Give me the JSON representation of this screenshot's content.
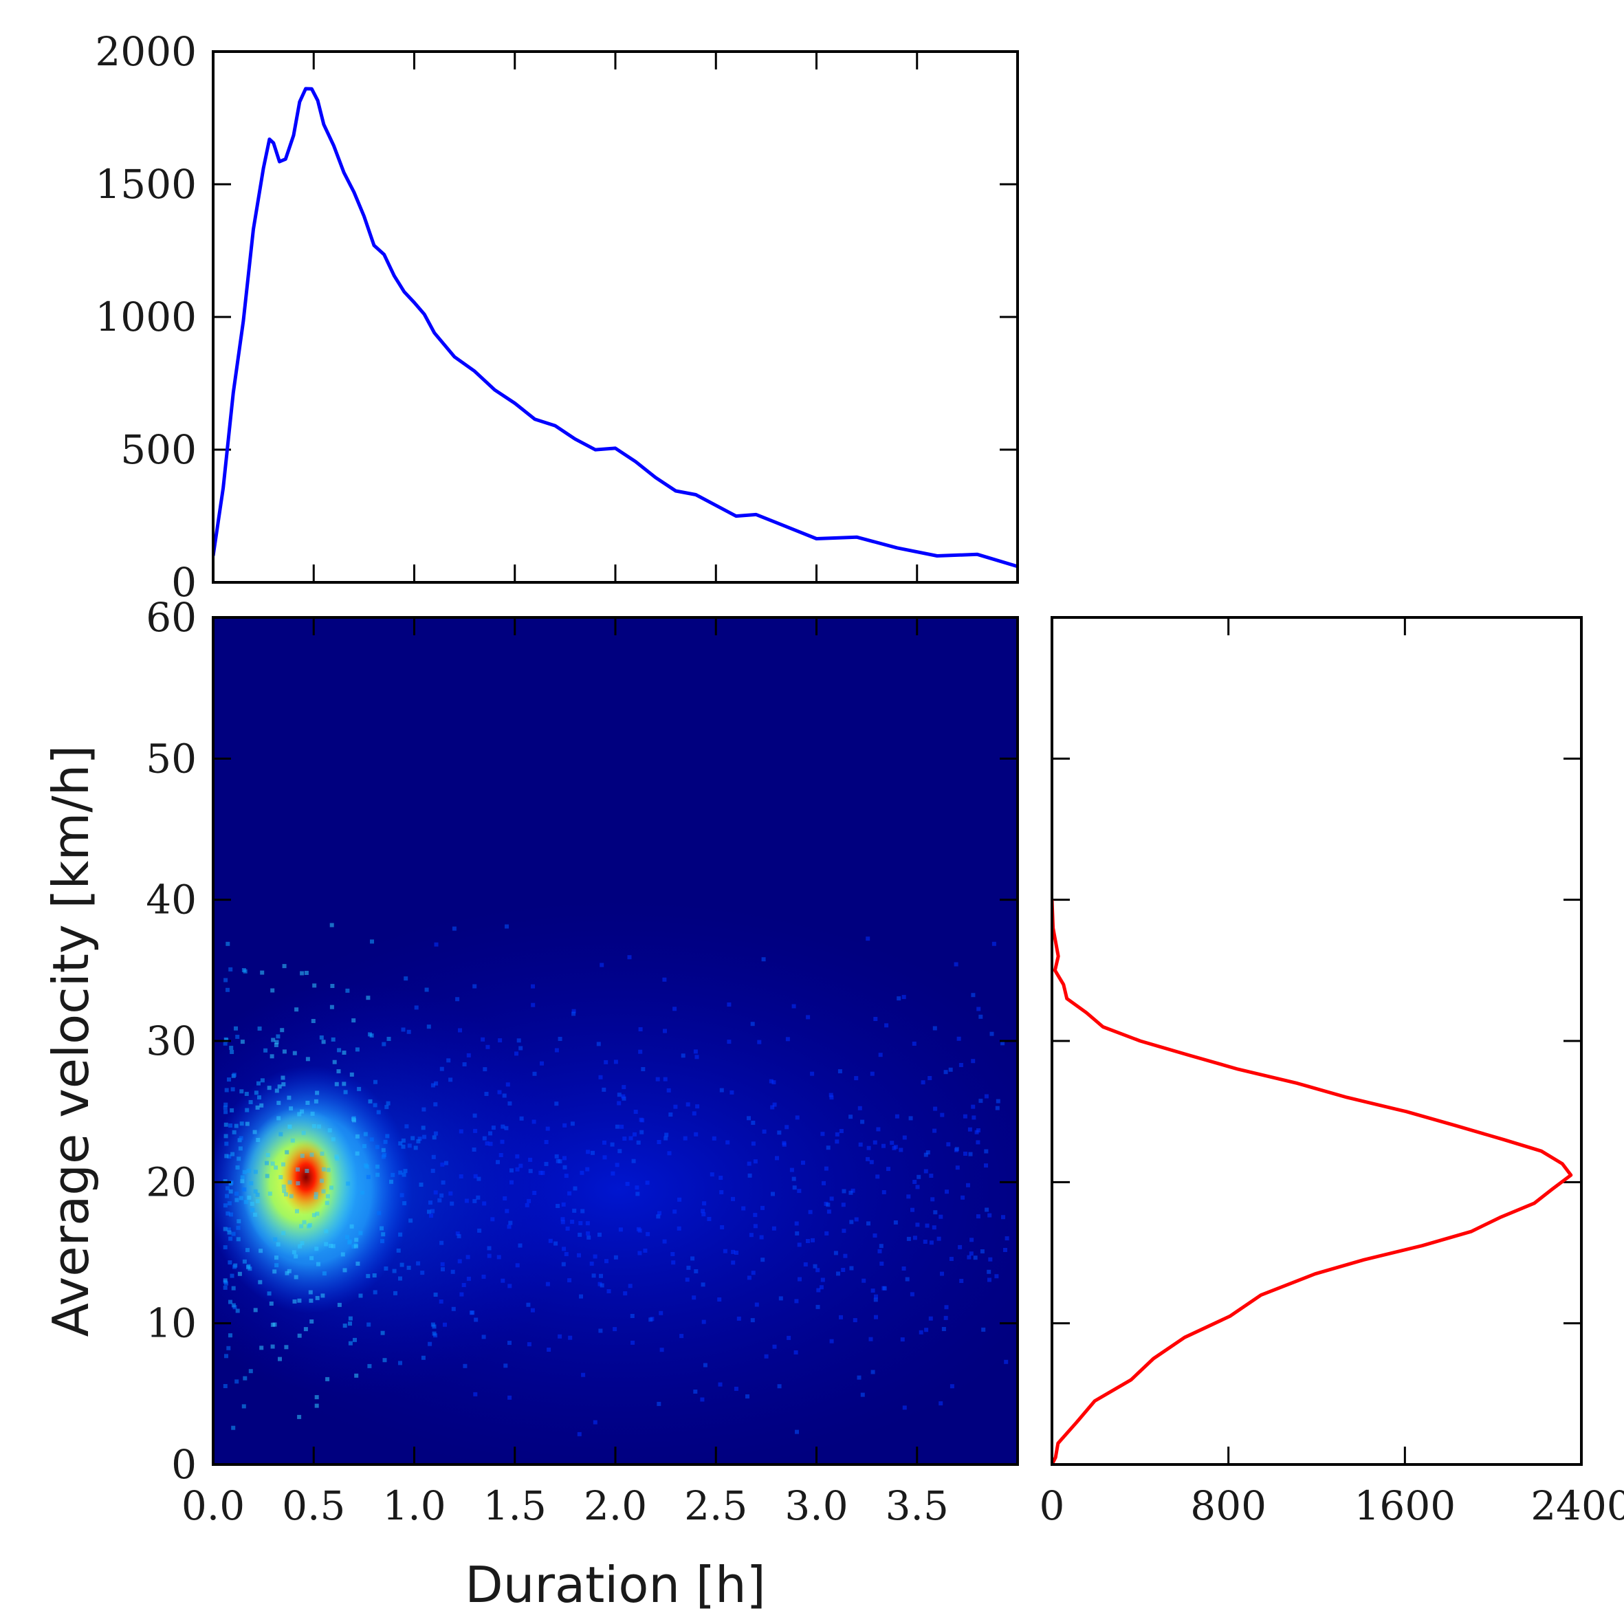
{
  "chart_data": [
    {
      "type": "line",
      "panel": "top-marginal",
      "title": "",
      "xlabel": "",
      "ylabel": "",
      "xlim": [
        0,
        4.0
      ],
      "ylim": [
        0,
        2000
      ],
      "x_ticks": [
        "0.0",
        "0.5",
        "1.0",
        "1.5",
        "2.0",
        "2.5",
        "3.0",
        "3.5"
      ],
      "y_ticks": [
        "0",
        "500",
        "1000",
        "1500",
        "2000"
      ],
      "series": [
        {
          "color": "#0000ff",
          "x": [
            0,
            0.05,
            0.1,
            0.15,
            0.2,
            0.25,
            0.28,
            0.3,
            0.33,
            0.36,
            0.4,
            0.43,
            0.46,
            0.49,
            0.52,
            0.55,
            0.6,
            0.65,
            0.7,
            0.75,
            0.8,
            0.85,
            0.9,
            0.95,
            1.0,
            1.05,
            1.1,
            1.2,
            1.3,
            1.4,
            1.5,
            1.6,
            1.7,
            1.8,
            1.9,
            2.0,
            2.1,
            2.2,
            2.3,
            2.4,
            2.5,
            2.6,
            2.7,
            2.8,
            2.9,
            3.0,
            3.2,
            3.4,
            3.6,
            3.8,
            4.0
          ],
          "y": [
            100,
            350,
            720,
            1000,
            1320,
            1560,
            1680,
            1640,
            1580,
            1600,
            1700,
            1800,
            1860,
            1870,
            1800,
            1720,
            1650,
            1560,
            1460,
            1380,
            1280,
            1220,
            1150,
            1100,
            1070,
            1000,
            940,
            860,
            780,
            720,
            680,
            630,
            580,
            540,
            510,
            490,
            450,
            400,
            360,
            320,
            290,
            260,
            240,
            220,
            200,
            180,
            160,
            130,
            110,
            90,
            60
          ]
        }
      ]
    },
    {
      "type": "heatmap",
      "panel": "main",
      "title": "",
      "xlabel": "Duration [h]",
      "ylabel": "Average velocity [km/h]",
      "xlim": [
        0,
        4.0
      ],
      "ylim": [
        0,
        60
      ],
      "x_ticks": [
        "0.0",
        "0.5",
        "1.0",
        "1.5",
        "2.0",
        "2.5",
        "3.0",
        "3.5"
      ],
      "y_ticks": [
        "0",
        "10",
        "20",
        "30",
        "40",
        "50",
        "60"
      ],
      "colormap": "jet",
      "peak": {
        "x": 0.48,
        "y": 20
      },
      "background_color": "#00007f"
    },
    {
      "type": "line",
      "panel": "right-marginal",
      "title": "",
      "xlabel": "",
      "ylabel": "",
      "xlim": [
        0,
        2400
      ],
      "ylim": [
        0,
        60
      ],
      "x_ticks": [
        "0",
        "800",
        "1600",
        "2400"
      ],
      "y_ticks": [
        "0",
        "10",
        "20",
        "30",
        "40",
        "50",
        "60"
      ],
      "series": [
        {
          "color": "#ff0000",
          "x": [
            0,
            10,
            40,
            100,
            200,
            340,
            460,
            620,
            800,
            960,
            1180,
            1420,
            1660,
            1900,
            2050,
            2180,
            2280,
            2340,
            2320,
            2200,
            2050,
            1850,
            1600,
            1350,
            1100,
            850,
            600,
            400,
            250,
            150,
            80,
            40,
            20,
            10,
            5,
            0
          ],
          "y": [
            0,
            0.5,
            1.5,
            3,
            4.5,
            6,
            7.5,
            9,
            10.5,
            12,
            13.5,
            14.5,
            15.5,
            16.5,
            17.5,
            18.5,
            19.5,
            20.5,
            21.3,
            22.2,
            23,
            24,
            25,
            26,
            27,
            28,
            29,
            30,
            31,
            32,
            33,
            34,
            35,
            36,
            38,
            40
          ]
        }
      ]
    }
  ]
}
